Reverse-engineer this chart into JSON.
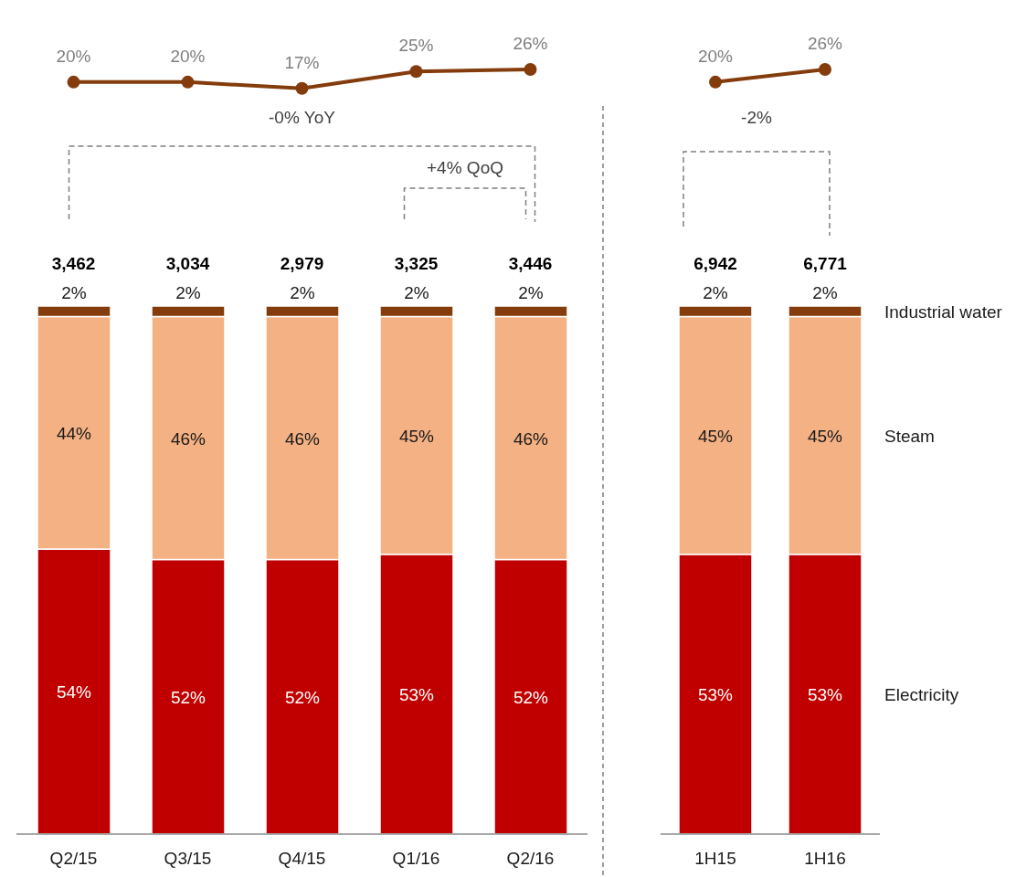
{
  "chart_data": [
    {
      "type": "line",
      "marker": "circle",
      "tick_labels": false,
      "categories": [
        null,
        null,
        null,
        null,
        null
      ],
      "series": [
        {
          "color": "#843c0c",
          "values": [
            20,
            20,
            17,
            25,
            26
          ],
          "value_labels": [
            "20%",
            "20%",
            "17%",
            "25%",
            "26%"
          ]
        }
      ]
    },
    {
      "type": "bar",
      "stacked": true,
      "categories": [
        "Q2/15",
        "Q3/15",
        "Q4/15",
        "Q1/16",
        "Q2/16"
      ],
      "series": [
        {
          "color": "#c00000",
          "values": [
            54,
            52,
            52,
            53,
            52
          ],
          "value_labels": [
            "54%",
            "52%",
            "52%",
            "53%",
            "52%"
          ]
        },
        {
          "color": "#f4b183",
          "values": [
            44,
            46,
            46,
            45,
            46
          ],
          "value_labels": [
            "44%",
            "46%",
            "46%",
            "45%",
            "46%"
          ]
        },
        {
          "color": "#843c0c",
          "values": [
            2,
            2,
            2,
            2,
            2
          ],
          "value_labels": [
            "2%",
            "2%",
            "2%",
            "2%",
            "2%"
          ]
        }
      ],
      "annotations": [
        "-0% YoY",
        "+4% QoQ",
        {
          "text": "3,462",
          "x": "Q2/15",
          "y": 100
        },
        {
          "text": "3,034",
          "x": "Q3/15",
          "y": 100
        },
        {
          "text": "2,979",
          "x": "Q4/15",
          "y": 100
        },
        {
          "text": "3,325",
          "x": "Q1/16",
          "y": 100
        },
        {
          "text": "3,446",
          "x": "Q2/16",
          "y": 100
        }
      ]
    },
    {
      "type": "line",
      "marker": "circle",
      "tick_labels": false,
      "categories": [
        null,
        null
      ],
      "series": [
        {
          "color": "#843c0c",
          "values": [
            20,
            26
          ],
          "value_labels": [
            "20%",
            "26%"
          ]
        }
      ]
    },
    {
      "type": "bar",
      "stacked": true,
      "legend": "right",
      "categories": [
        "1H15",
        "1H16"
      ],
      "series": [
        {
          "name": "Electricity",
          "color": "#c00000",
          "values": [
            53,
            53
          ],
          "value_labels": [
            "53%",
            "53%"
          ]
        },
        {
          "name": "Steam",
          "color": "#f4b183",
          "values": [
            45,
            45
          ],
          "value_labels": [
            "45%",
            "45%"
          ]
        },
        {
          "name": "Industrial water",
          "color": "#843c0c",
          "values": [
            2,
            2
          ],
          "value_labels": [
            "2%",
            "2%"
          ]
        }
      ],
      "annotations": [
        "-2%",
        {
          "text": "6,942",
          "x": "1H15",
          "y": 100
        },
        {
          "text": "6,771",
          "x": "1H16",
          "y": 100
        }
      ]
    }
  ]
}
